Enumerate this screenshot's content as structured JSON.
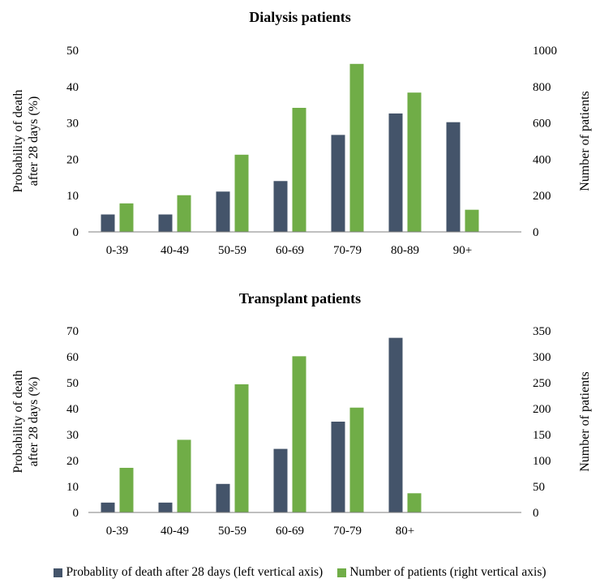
{
  "colors": {
    "death": "#44546a",
    "patients": "#70ad47",
    "axis": "#7f7f7f"
  },
  "legend": [
    {
      "label": "Probablity of death after 28 days (left vertical axis)",
      "color": "#44546a"
    },
    {
      "label": "Number of patients (right vertical axis)",
      "color": "#70ad47"
    }
  ],
  "chart_data": [
    {
      "type": "bar",
      "title": "Dialysis patients",
      "ylabel": "Probability of death after 28 days (%)",
      "ylabel_lines": [
        "Probability of death",
        "after 28 days (%)"
      ],
      "y2label": "Number of patients",
      "categories": [
        "0-39",
        "40-49",
        "50-59",
        "60-69",
        "70-79",
        "80-89",
        "90+"
      ],
      "ylim": [
        0,
        50
      ],
      "yticks": [
        0,
        10,
        20,
        30,
        40,
        50
      ],
      "y2lim": [
        0,
        1000
      ],
      "y2ticks": [
        0,
        200,
        400,
        600,
        800,
        1000
      ],
      "series": [
        {
          "name": "Probablity of death after 28 days (left vertical axis)",
          "axis": "left",
          "color": "#44546a",
          "values": [
            4.8,
            4.8,
            11.1,
            14.0,
            26.7,
            32.6,
            30.2
          ]
        },
        {
          "name": "Number of patients (right vertical axis)",
          "axis": "right",
          "color": "#70ad47",
          "values": [
            157,
            202,
            425,
            683,
            925,
            767,
            122
          ]
        }
      ],
      "grid": false
    },
    {
      "type": "bar",
      "title": "Transplant patients",
      "ylabel": "Probability of death after 28 days (%)",
      "ylabel_lines": [
        "Probability of death",
        "after 28 days (%)"
      ],
      "y2label": "Number of patients",
      "categories": [
        "0-39",
        "40-49",
        "50-59",
        "60-69",
        "70-79",
        "80+"
      ],
      "ylim": [
        0,
        70
      ],
      "yticks": [
        0,
        10,
        20,
        30,
        40,
        50,
        60,
        70
      ],
      "y2lim": [
        0,
        350
      ],
      "y2ticks": [
        0,
        50,
        100,
        150,
        200,
        250,
        300,
        350
      ],
      "series": [
        {
          "name": "Probablity of death after 28 days (left vertical axis)",
          "axis": "left",
          "color": "#44546a",
          "values": [
            3.8,
            3.8,
            11.0,
            24.5,
            35.0,
            67.3
          ]
        },
        {
          "name": "Number of patients (right vertical axis)",
          "axis": "right",
          "color": "#70ad47",
          "values": [
            86,
            140,
            247,
            301,
            202,
            37
          ]
        }
      ],
      "grid": false
    }
  ]
}
